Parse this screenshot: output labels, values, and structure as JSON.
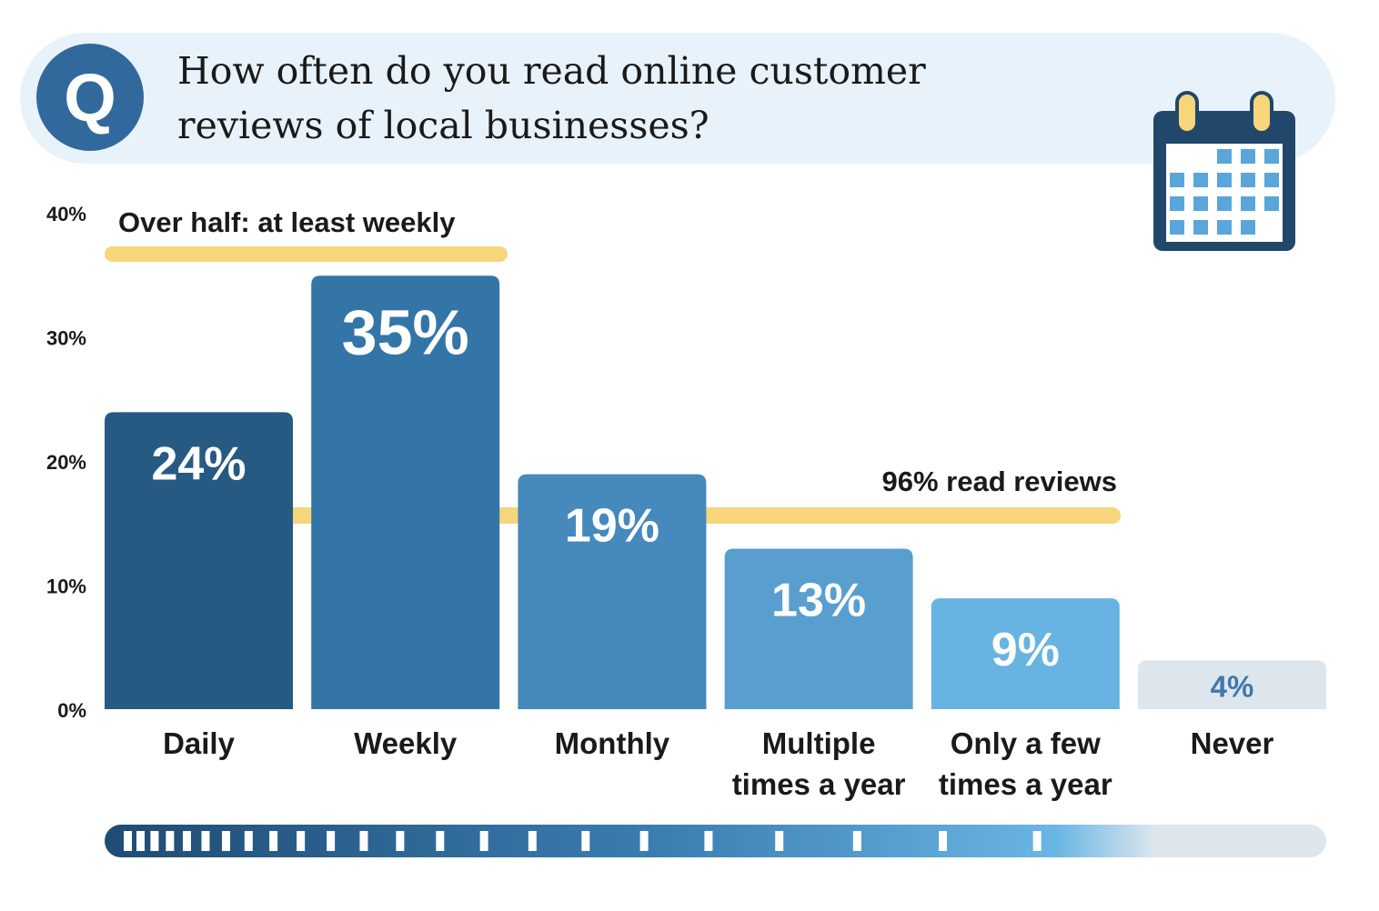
{
  "question": {
    "badge": "Q",
    "line1": "How often do you read online customer",
    "line2": "reviews of local businesses?"
  },
  "icons": {
    "question": "question-badge-icon",
    "calendar": "calendar-icon"
  },
  "colors": {
    "daily": "#265a82",
    "weekly": "#3475a8",
    "monthly": "#4589bd",
    "multiple": "#589fd0",
    "few": "#67b3e1",
    "never": "#dde6ed",
    "never_label": "#3f78aa",
    "highlight": "#f7d57a"
  },
  "annotations": {
    "weekly": "Over half: at least weekly",
    "read": "96% read reviews"
  },
  "chart_data": {
    "type": "bar",
    "categories": [
      "Daily",
      "Weekly",
      "Monthly",
      "Multiple times a year",
      "Only a few times a year",
      "Never"
    ],
    "category_lines": [
      [
        "Daily"
      ],
      [
        "Weekly"
      ],
      [
        "Monthly"
      ],
      [
        "Multiple",
        "times a year"
      ],
      [
        "Only a few",
        "times a year"
      ],
      [
        "Never"
      ]
    ],
    "values": [
      24,
      35,
      19,
      13,
      9,
      4
    ],
    "value_labels": [
      "24%",
      "35%",
      "19%",
      "13%",
      "9%",
      "4%"
    ],
    "ylim": [
      0,
      40
    ],
    "yticks": [
      0,
      10,
      20,
      30,
      40
    ],
    "ytick_labels": [
      "0%",
      "10%",
      "20%",
      "30%",
      "40%"
    ],
    "title": "How often do you read online customer reviews of local businesses?",
    "xlabel": "",
    "ylabel": "",
    "grid": false,
    "legend": "none"
  }
}
